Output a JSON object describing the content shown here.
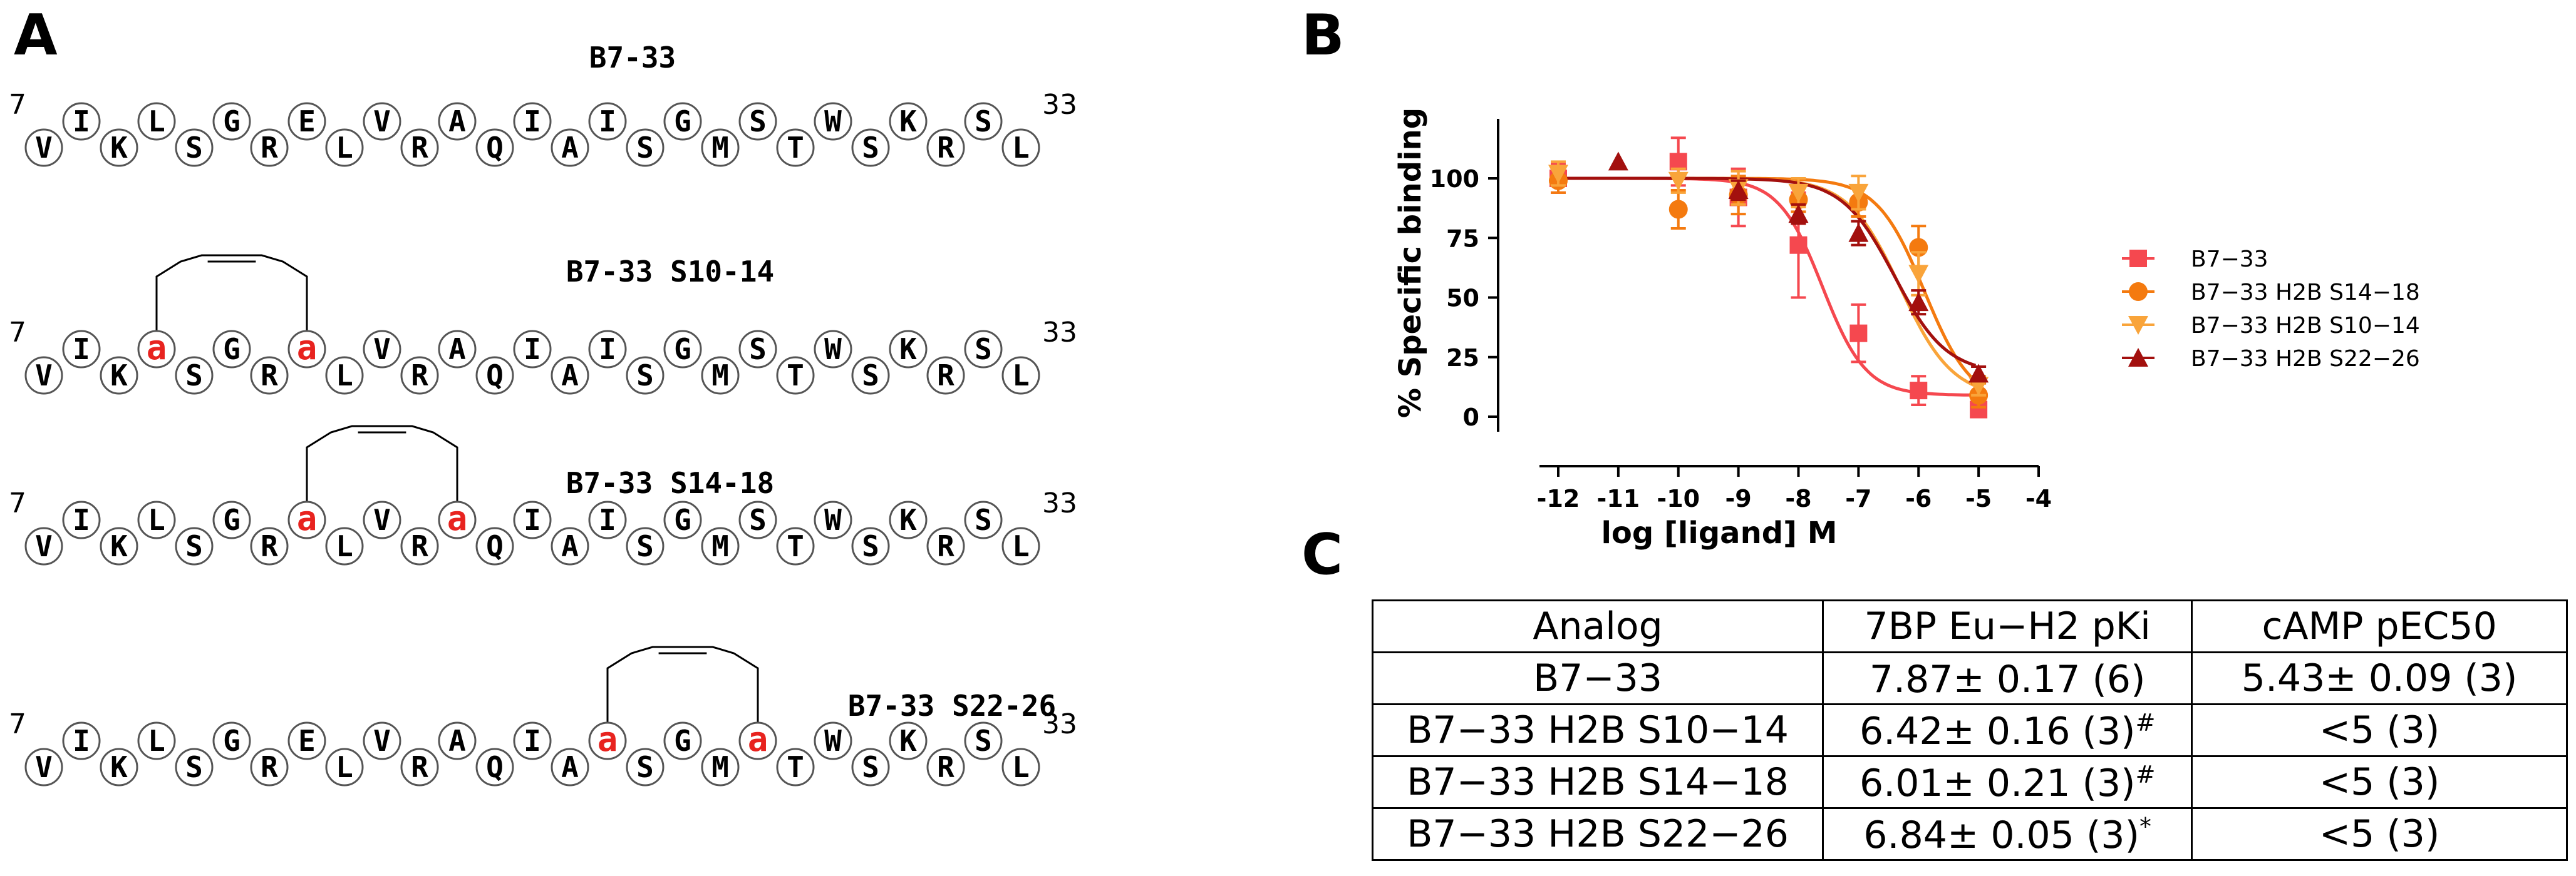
{
  "panels": {
    "a": "A",
    "b": "B",
    "c": "C"
  },
  "colors": {
    "staple_residue": "#e8231f",
    "series": [
      "#f5484f",
      "#f47a0f",
      "#f9a43a",
      "#a3100e"
    ]
  },
  "sequence_panel": {
    "start_label": "7",
    "end_label": "33",
    "peptides": [
      {
        "title": "B7-33",
        "residues": [
          "V",
          "I",
          "K",
          "L",
          "S",
          "G",
          "R",
          "E",
          "L",
          "V",
          "R",
          "A",
          "Q",
          "I",
          "A",
          "I",
          "S",
          "G",
          "M",
          "S",
          "T",
          "W",
          "S",
          "K",
          "R",
          "S",
          "L"
        ],
        "staple_positions": []
      },
      {
        "title": "B7-33 S10-14",
        "residues": [
          "V",
          "I",
          "K",
          "a",
          "S",
          "G",
          "R",
          "a",
          "L",
          "V",
          "R",
          "A",
          "Q",
          "I",
          "A",
          "I",
          "S",
          "G",
          "M",
          "S",
          "T",
          "W",
          "S",
          "K",
          "R",
          "S",
          "L"
        ],
        "staple_positions": [
          3,
          7
        ]
      },
      {
        "title": "B7-33 S14-18",
        "residues": [
          "V",
          "I",
          "K",
          "L",
          "S",
          "G",
          "R",
          "a",
          "L",
          "V",
          "R",
          "a",
          "Q",
          "I",
          "A",
          "I",
          "S",
          "G",
          "M",
          "S",
          "T",
          "W",
          "S",
          "K",
          "R",
          "S",
          "L"
        ],
        "staple_positions": [
          7,
          11
        ]
      },
      {
        "title": "B7-33 S22-26",
        "residues": [
          "V",
          "I",
          "K",
          "L",
          "S",
          "G",
          "R",
          "E",
          "L",
          "V",
          "R",
          "A",
          "Q",
          "I",
          "A",
          "a",
          "S",
          "G",
          "M",
          "a",
          "T",
          "W",
          "S",
          "K",
          "R",
          "S",
          "L"
        ],
        "staple_positions": [
          15,
          19
        ]
      }
    ]
  },
  "chart_data": {
    "type": "line",
    "title": "",
    "xlabel": "log [ligand] M",
    "ylabel": "% Specific binding",
    "xlim": [
      -12,
      -4
    ],
    "ylim": [
      0,
      100
    ],
    "x_ticks": [
      "-12",
      "-11",
      "-10",
      "-9",
      "-8",
      "-7",
      "-6",
      "-5",
      "-4"
    ],
    "y_ticks": [
      "0",
      "25",
      "50",
      "75",
      "100"
    ],
    "legend_position": "right",
    "series": [
      {
        "name": "B7−33",
        "marker": "square",
        "color": "#f5484f",
        "fit": {
          "top": 100,
          "bottom": 9,
          "logIC50": -7.6,
          "hill": 1.2
        },
        "points": [
          {
            "x": -12,
            "y": 100,
            "err": 6
          },
          {
            "x": -10,
            "y": 107,
            "err": 10
          },
          {
            "x": -9,
            "y": 92,
            "err": 12
          },
          {
            "x": -8,
            "y": 72,
            "err": 22
          },
          {
            "x": -7,
            "y": 35,
            "err": 12
          },
          {
            "x": -6,
            "y": 11,
            "err": 6
          },
          {
            "x": -5,
            "y": 3,
            "err": 3
          }
        ]
      },
      {
        "name": "B7−33 H2B S14−18",
        "marker": "circle",
        "color": "#f47a0f",
        "fit": {
          "top": 100,
          "bottom": 5,
          "logIC50": -5.9,
          "hill": 1.1
        },
        "points": [
          {
            "x": -12,
            "y": 99,
            "err": 5
          },
          {
            "x": -10,
            "y": 87,
            "err": 8
          },
          {
            "x": -9,
            "y": 93,
            "err": 8
          },
          {
            "x": -8,
            "y": 91,
            "err": 5
          },
          {
            "x": -7,
            "y": 90,
            "err": 6
          },
          {
            "x": -6,
            "y": 71,
            "err": 9
          },
          {
            "x": -5,
            "y": 9,
            "err": 5
          }
        ]
      },
      {
        "name": "B7−33 H2B S10−14",
        "marker": "triangle-down",
        "color": "#f9a43a",
        "fit": {
          "top": 100,
          "bottom": 8,
          "logIC50": -6.3,
          "hill": 1.0
        },
        "points": [
          {
            "x": -12,
            "y": 102,
            "err": 5
          },
          {
            "x": -10,
            "y": 99,
            "err": 5
          },
          {
            "x": -9,
            "y": 96,
            "err": 7
          },
          {
            "x": -8,
            "y": 94,
            "err": 6
          },
          {
            "x": -7,
            "y": 94,
            "err": 7
          },
          {
            "x": -6,
            "y": 60,
            "err": 9
          },
          {
            "x": -5,
            "y": 13,
            "err": 4
          }
        ]
      },
      {
        "name": "B7−33 H2B S22−26",
        "marker": "triangle-up",
        "color": "#a3100e",
        "fit": {
          "top": 100,
          "bottom": 18,
          "logIC50": -6.4,
          "hill": 1.0
        },
        "points": [
          {
            "x": -11,
            "y": 107,
            "err": 0
          },
          {
            "x": -9,
            "y": 95,
            "err": 4
          },
          {
            "x": -8,
            "y": 85,
            "err": 4
          },
          {
            "x": -7,
            "y": 77,
            "err": 5
          },
          {
            "x": -6,
            "y": 48,
            "err": 5
          },
          {
            "x": -5,
            "y": 18,
            "err": 3
          }
        ]
      }
    ]
  },
  "table": {
    "headers": [
      "Analog",
      "7BP Eu−H2 pKi",
      "cAMP pEC50"
    ],
    "rows": [
      {
        "analog": "B7−33",
        "pki": "7.87± 0.17 (6)",
        "pki_mark": "",
        "pec50": "5.43± 0.09 (3)"
      },
      {
        "analog": "B7−33 H2B S10−14",
        "pki": "6.42± 0.16 (3)",
        "pki_mark": "#",
        "pec50": "<5 (3)"
      },
      {
        "analog": "B7−33 H2B S14−18",
        "pki": "6.01± 0.21 (3)",
        "pki_mark": "#",
        "pec50": "<5 (3)"
      },
      {
        "analog": "B7−33 H2B S22−26",
        "pki": "6.84± 0.05 (3)",
        "pki_mark": "*",
        "pec50": "<5 (3)"
      }
    ]
  }
}
